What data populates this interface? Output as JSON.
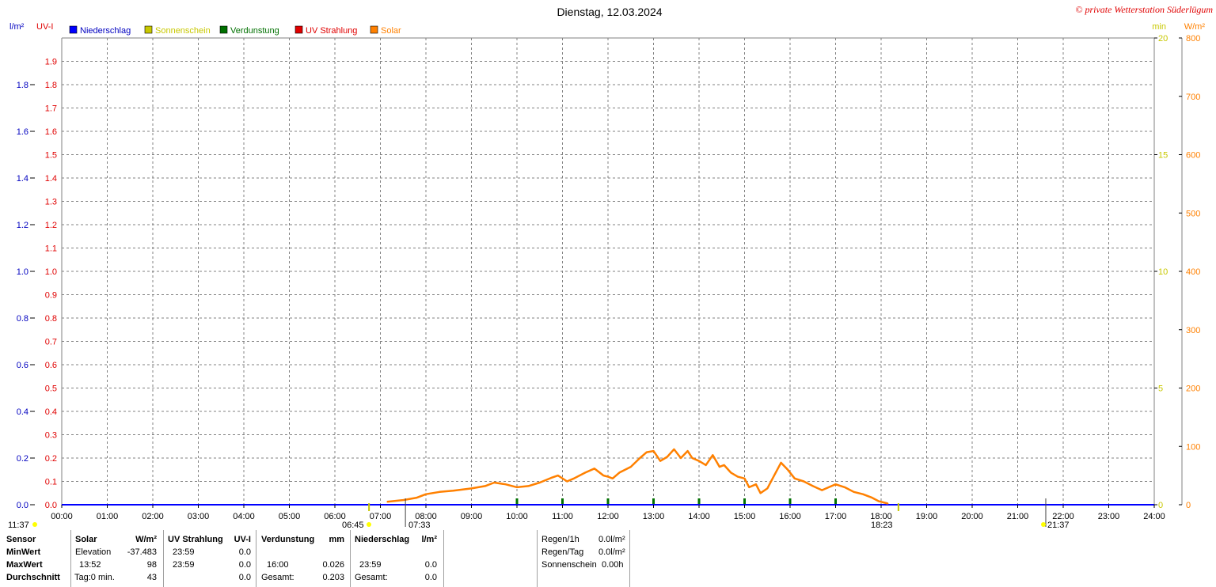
{
  "chart_data": {
    "type": "line",
    "title": "Dienstag, 12.03.2024",
    "credit": "© private Wetterstation Süderlügum",
    "legend": [
      {
        "name": "Niederschlag",
        "color": "#0000ff"
      },
      {
        "name": "Sonnenschein",
        "color": "#c8c800"
      },
      {
        "name": "Verdunstung",
        "color": "#007000"
      },
      {
        "name": "UV Strahlung",
        "color": "#e00000"
      },
      {
        "name": "Solar",
        "color": "#ff8000"
      }
    ],
    "axes": {
      "left1": {
        "unit": "l/m²",
        "color": "#0000c0",
        "ylim": [
          0,
          2.0
        ],
        "ticks": [
          "0.0",
          "0.2",
          "0.4",
          "0.6",
          "0.8",
          "1.0",
          "1.2",
          "1.4",
          "1.6",
          "1.8"
        ]
      },
      "left2": {
        "unit": "UV-I",
        "color": "#e00000",
        "ylim": [
          0,
          2.0
        ],
        "ticks": [
          "0.0",
          "0.1",
          "0.2",
          "0.3",
          "0.4",
          "0.5",
          "0.6",
          "0.7",
          "0.8",
          "0.9",
          "1.0",
          "1.1",
          "1.2",
          "1.3",
          "1.4",
          "1.5",
          "1.6",
          "1.7",
          "1.8",
          "1.9"
        ]
      },
      "right1": {
        "unit": "min",
        "color": "#c8c800",
        "ylim": [
          0,
          20
        ],
        "ticks": [
          "0",
          "5",
          "10",
          "15",
          "20"
        ]
      },
      "right2": {
        "unit": "W/m²",
        "color": "#ff8000",
        "ylim": [
          0,
          800
        ],
        "ticks": [
          "0",
          "100",
          "200",
          "300",
          "400",
          "500",
          "600",
          "700",
          "800"
        ]
      },
      "x": {
        "ticks": [
          "00:00",
          "01:00",
          "02:00",
          "03:00",
          "04:00",
          "05:00",
          "06:00",
          "07:00",
          "08:00",
          "09:00",
          "10:00",
          "11:00",
          "12:00",
          "13:00",
          "14:00",
          "15:00",
          "16:00",
          "17:00",
          "18:00",
          "19:00",
          "20:00",
          "21:00",
          "22:00",
          "23:00",
          "24:00"
        ],
        "xlim": [
          0,
          24
        ]
      }
    },
    "grid": true,
    "series": [
      {
        "name": "Solar",
        "color": "#ff8000",
        "x": [
          7.15,
          7.5,
          7.8,
          8.0,
          8.3,
          8.6,
          9.0,
          9.3,
          9.5,
          9.75,
          10.0,
          10.25,
          10.5,
          10.75,
          10.9,
          11.1,
          11.25,
          11.5,
          11.7,
          11.9,
          12.0,
          12.1,
          12.25,
          12.5,
          12.7,
          12.85,
          13.0,
          13.15,
          13.3,
          13.45,
          13.6,
          13.75,
          13.85,
          14.0,
          14.15,
          14.3,
          14.45,
          14.55,
          14.7,
          14.85,
          15.0,
          15.1,
          15.25,
          15.35,
          15.5,
          15.65,
          15.8,
          15.95,
          16.1,
          16.3,
          16.5,
          16.7,
          16.85,
          17.0,
          17.2,
          17.4,
          17.6,
          17.8,
          17.95,
          18.15
        ],
        "y": [
          5,
          8,
          12,
          18,
          22,
          24,
          28,
          32,
          38,
          35,
          30,
          32,
          38,
          46,
          50,
          40,
          45,
          55,
          62,
          50,
          48,
          45,
          55,
          65,
          80,
          90,
          92,
          75,
          82,
          95,
          80,
          92,
          80,
          75,
          68,
          85,
          65,
          68,
          55,
          48,
          45,
          30,
          35,
          20,
          28,
          50,
          72,
          60,
          45,
          40,
          32,
          25,
          30,
          35,
          30,
          22,
          18,
          12,
          6,
          2
        ]
      }
    ],
    "markers": {
      "verdunstung_hours": [
        10,
        11,
        12,
        13,
        14,
        15,
        16,
        17
      ],
      "sunrise_label": "06:45",
      "sunrise_time": 6.75,
      "dawn_label": "07:33",
      "dawn_time": 7.55,
      "sunset_label": "18:23",
      "sunset_time": 18.38,
      "dusk_label": "21:37",
      "dusk_time": 21.617,
      "moon_label": "11:37"
    }
  },
  "stats": {
    "headers": [
      "Sensor",
      "Solar",
      "W/m²",
      "UV Strahlung",
      "UV-I",
      "Verdunstung",
      "mm",
      "Niederschlag",
      "l/m²"
    ],
    "rows": [
      {
        "label": "MinWert",
        "solar_time": "Elevation",
        "solar_val": "-37.483",
        "uv_time": "23:59",
        "uv_val": "0.0",
        "verd_time": "",
        "verd_val": "",
        "nied_time": "",
        "nied_val": ""
      },
      {
        "label": "MaxWert",
        "solar_time": "13:52",
        "solar_val": "98",
        "uv_time": "23:59",
        "uv_val": "0.0",
        "verd_time": "16:00",
        "verd_val": "0.026",
        "nied_time": "23:59",
        "nied_val": "0.0"
      },
      {
        "label": "Durchschnitt",
        "solar_time": "Tag:0 min.",
        "solar_val": "43",
        "uv_time": "",
        "uv_val": "0.0",
        "verd_time": "Gesamt:",
        "verd_val": "0.203",
        "nied_time": "Gesamt:",
        "nied_val": "0.0"
      }
    ],
    "summary": [
      {
        "label": "Regen/1h",
        "value": "0.0l/m²"
      },
      {
        "label": "Regen/Tag",
        "value": "0.0l/m²"
      },
      {
        "label": "Sonnenschein",
        "value": "0.00h"
      }
    ]
  }
}
